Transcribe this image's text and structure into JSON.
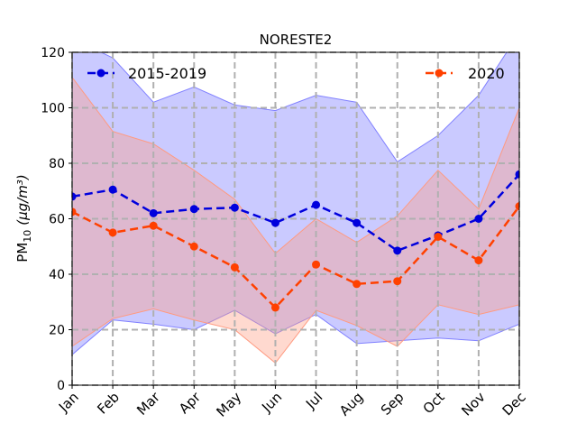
{
  "chart_data": {
    "type": "line",
    "title": "NORESTE2",
    "ylabel_main": "PM",
    "ylabel_sub": "10",
    "ylabel_unit": "(μg/m³)",
    "categories": [
      "Jan",
      "Feb",
      "Mar",
      "Apr",
      "May",
      "Jun",
      "Jul",
      "Aug",
      "Sep",
      "Oct",
      "Nov",
      "Dec"
    ],
    "ylim": [
      0,
      120
    ],
    "yticks": [
      0,
      20,
      40,
      60,
      80,
      100,
      120
    ],
    "grid": true,
    "legend_placement": "top",
    "series": [
      {
        "name": "2015-2019",
        "color": "#0000dd",
        "band_color": "#8080ff",
        "values": [
          68,
          70.5,
          62,
          63.5,
          64,
          58.5,
          65,
          58.5,
          48.5,
          54,
          60,
          76
        ],
        "band_upper": [
          125,
          118,
          102,
          107.5,
          101,
          99,
          104.5,
          102,
          80.5,
          90,
          104.5,
          127
        ],
        "band_lower": [
          11,
          23.5,
          22,
          20,
          27,
          18.5,
          25.5,
          15,
          16,
          17,
          16,
          22
        ]
      },
      {
        "name": "2020",
        "color": "#ff4000",
        "band_color": "#ff9a80",
        "values": [
          62.5,
          55,
          57.5,
          50,
          42.5,
          28,
          43.5,
          36.5,
          37.5,
          53.5,
          45,
          64.5
        ],
        "band_upper": [
          111,
          91.5,
          87,
          77.5,
          67,
          47.5,
          60,
          51.5,
          61,
          77.5,
          63.5,
          100
        ],
        "band_lower": [
          14,
          24,
          27.5,
          23.5,
          20,
          8,
          27,
          21.5,
          14,
          29,
          25.5,
          29
        ]
      }
    ]
  }
}
